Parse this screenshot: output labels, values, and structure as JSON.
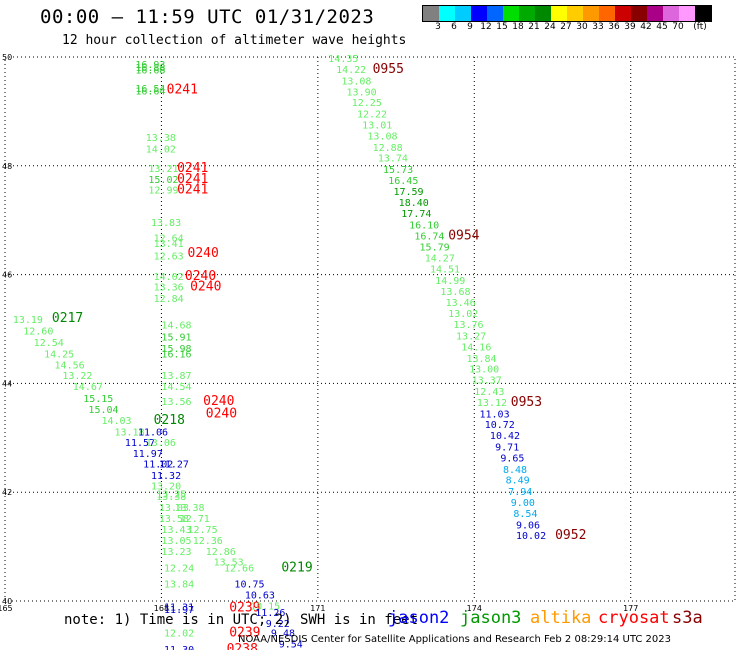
{
  "header": {
    "title": "00:00 — 11:59 UTC 01/31/2023",
    "subtitle": "12 hour collection of altimeter wave heights"
  },
  "legend": {
    "colors": [
      "#808080",
      "#00ffff",
      "#00ccff",
      "#0000ff",
      "#0066ff",
      "#00dd00",
      "#00aa00",
      "#008800",
      "#ffff00",
      "#ffcc00",
      "#ff9900",
      "#ff6600",
      "#cc0000",
      "#880000",
      "#aa0088",
      "#dd66dd",
      "#ff99ff",
      "#000000"
    ],
    "labels": [
      "3",
      "6",
      "9",
      "12",
      "15",
      "18",
      "21",
      "24",
      "27",
      "30",
      "33",
      "36",
      "39",
      "42",
      "45",
      "70",
      "(ft)"
    ]
  },
  "axes": {
    "lat_labels": [
      "50",
      "48",
      "46",
      "44",
      "42",
      "40"
    ],
    "lon_labels": [
      "165",
      "168",
      "171",
      "174",
      "177"
    ]
  },
  "observations": [
    {
      "t": "16.93",
      "lon": 167.5,
      "lat": 49.87,
      "c": "#33cc33"
    },
    {
      "t": "16.88",
      "lon": 167.5,
      "lat": 49.82,
      "c": "#33cc33"
    },
    {
      "t": "16.68",
      "lon": 167.5,
      "lat": 49.77,
      "c": "#33cc33"
    },
    {
      "t": "16.54",
      "lon": 167.5,
      "lat": 49.43,
      "c": "#33cc33"
    },
    {
      "t": "16.64",
      "lon": 167.5,
      "lat": 49.38,
      "c": "#33cc33"
    },
    {
      "t": "0241",
      "lon": 168.1,
      "lat": 49.4,
      "c": "#ff0000",
      "big": true
    },
    {
      "t": "13.38",
      "lon": 167.7,
      "lat": 48.53,
      "c": "#66ee66"
    },
    {
      "t": "14.02",
      "lon": 167.7,
      "lat": 48.32,
      "c": "#66ee66"
    },
    {
      "t": "13.21",
      "lon": 167.75,
      "lat": 47.96,
      "c": "#66ee66"
    },
    {
      "t": "0241",
      "lon": 168.3,
      "lat": 47.96,
      "c": "#ff0000",
      "big": true
    },
    {
      "t": "15.02",
      "lon": 167.75,
      "lat": 47.76,
      "c": "#33cc33"
    },
    {
      "t": "0241",
      "lon": 168.3,
      "lat": 47.76,
      "c": "#ff0000",
      "big": true
    },
    {
      "t": "12.99",
      "lon": 167.75,
      "lat": 47.56,
      "c": "#66ee66"
    },
    {
      "t": "0241",
      "lon": 168.3,
      "lat": 47.56,
      "c": "#ff0000",
      "big": true
    },
    {
      "t": "13.83",
      "lon": 167.8,
      "lat": 46.97,
      "c": "#66ee66"
    },
    {
      "t": "12.64",
      "lon": 167.85,
      "lat": 46.68,
      "c": "#66ee66"
    },
    {
      "t": "13.41",
      "lon": 167.85,
      "lat": 46.58,
      "c": "#66ee66"
    },
    {
      "t": "12.63",
      "lon": 167.85,
      "lat": 46.35,
      "c": "#66ee66"
    },
    {
      "t": "0240",
      "lon": 168.5,
      "lat": 46.4,
      "c": "#ff0000",
      "big": true
    },
    {
      "t": "14.02",
      "lon": 167.85,
      "lat": 45.97,
      "c": "#66ee66"
    },
    {
      "t": "0240",
      "lon": 168.45,
      "lat": 45.97,
      "c": "#ff0000",
      "big": true
    },
    {
      "t": "13.36",
      "lon": 167.85,
      "lat": 45.78,
      "c": "#66ee66"
    },
    {
      "t": "0240",
      "lon": 168.55,
      "lat": 45.78,
      "c": "#ff0000",
      "big": true
    },
    {
      "t": "12.84",
      "lon": 167.85,
      "lat": 45.57,
      "c": "#66ee66"
    },
    {
      "t": "13.19",
      "lon": 165.15,
      "lat": 45.18,
      "c": "#66ee66"
    },
    {
      "t": "0217",
      "lon": 165.9,
      "lat": 45.2,
      "c": "#008800",
      "big": true
    },
    {
      "t": "12.60",
      "lon": 165.35,
      "lat": 44.97,
      "c": "#66ee66"
    },
    {
      "t": "14.68",
      "lon": 168.0,
      "lat": 45.08,
      "c": "#66ee66"
    },
    {
      "t": "12.54",
      "lon": 165.55,
      "lat": 44.76,
      "c": "#66ee66"
    },
    {
      "t": "15.91",
      "lon": 168.0,
      "lat": 44.86,
      "c": "#33cc33"
    },
    {
      "t": "14.25",
      "lon": 165.75,
      "lat": 44.55,
      "c": "#66ee66"
    },
    {
      "t": "15.98",
      "lon": 168.0,
      "lat": 44.65,
      "c": "#33cc33"
    },
    {
      "t": "16.16",
      "lon": 168.0,
      "lat": 44.55,
      "c": "#33cc33"
    },
    {
      "t": "14.56",
      "lon": 165.95,
      "lat": 44.35,
      "c": "#66ee66"
    },
    {
      "t": "13.22",
      "lon": 166.1,
      "lat": 44.15,
      "c": "#66ee66"
    },
    {
      "t": "13.87",
      "lon": 168.0,
      "lat": 44.15,
      "c": "#66ee66"
    },
    {
      "t": "14.67",
      "lon": 166.3,
      "lat": 43.95,
      "c": "#66ee66"
    },
    {
      "t": "14.54",
      "lon": 168.0,
      "lat": 43.95,
      "c": "#66ee66"
    },
    {
      "t": "15.15",
      "lon": 166.5,
      "lat": 43.73,
      "c": "#33cc33"
    },
    {
      "t": "13.56",
      "lon": 168.0,
      "lat": 43.68,
      "c": "#66ee66"
    },
    {
      "t": "0240",
      "lon": 168.8,
      "lat": 43.68,
      "c": "#ff0000",
      "big": true
    },
    {
      "t": "15.04",
      "lon": 166.6,
      "lat": 43.53,
      "c": "#33cc33"
    },
    {
      "t": "0240",
      "lon": 168.85,
      "lat": 43.45,
      "c": "#ff0000",
      "big": true
    },
    {
      "t": "14.03",
      "lon": 166.85,
      "lat": 43.33,
      "c": "#66ee66"
    },
    {
      "t": "0218",
      "lon": 167.85,
      "lat": 43.33,
      "c": "#008800",
      "big": true
    },
    {
      "t": "13.18",
      "lon": 167.1,
      "lat": 43.12,
      "c": "#66ee66"
    },
    {
      "t": "11.06",
      "lon": 167.55,
      "lat": 43.12,
      "c": "#0000cc"
    },
    {
      "t": "11.57",
      "lon": 167.3,
      "lat": 42.92,
      "c": "#0000cc"
    },
    {
      "t": "13.06",
      "lon": 167.7,
      "lat": 42.92,
      "c": "#66ee66"
    },
    {
      "t": "11.97",
      "lon": 167.45,
      "lat": 42.72,
      "c": "#0000cc"
    },
    {
      "t": "11.02",
      "lon": 167.65,
      "lat": 42.53,
      "c": "#0000cc"
    },
    {
      "t": "11.27",
      "lon": 167.95,
      "lat": 42.53,
      "c": "#0000cc"
    },
    {
      "t": "11.32",
      "lon": 167.8,
      "lat": 42.32,
      "c": "#0000cc"
    },
    {
      "t": "13.20",
      "lon": 167.8,
      "lat": 42.12,
      "c": "#66ee66"
    },
    {
      "t": "13.25",
      "lon": 167.9,
      "lat": 41.98,
      "c": "#66ee66"
    },
    {
      "t": "13.38",
      "lon": 167.9,
      "lat": 41.93,
      "c": "#66ee66"
    },
    {
      "t": "13.03",
      "lon": 167.95,
      "lat": 41.73,
      "c": "#66ee66"
    },
    {
      "t": "13.38",
      "lon": 168.25,
      "lat": 41.73,
      "c": "#66ee66"
    },
    {
      "t": "13.58",
      "lon": 167.95,
      "lat": 41.53,
      "c": "#66ee66"
    },
    {
      "t": "12.71",
      "lon": 168.35,
      "lat": 41.53,
      "c": "#66ee66"
    },
    {
      "t": "13.43",
      "lon": 168.0,
      "lat": 41.32,
      "c": "#66ee66"
    },
    {
      "t": "12.75",
      "lon": 168.5,
      "lat": 41.32,
      "c": "#66ee66"
    },
    {
      "t": "13.05",
      "lon": 168.0,
      "lat": 41.12,
      "c": "#66ee66"
    },
    {
      "t": "12.36",
      "lon": 168.6,
      "lat": 41.12,
      "c": "#66ee66"
    },
    {
      "t": "13.23",
      "lon": 168.0,
      "lat": 40.92,
      "c": "#66ee66"
    },
    {
      "t": "12.86",
      "lon": 168.85,
      "lat": 40.92,
      "c": "#66ee66"
    },
    {
      "t": "13.53",
      "lon": 169.0,
      "lat": 40.73,
      "c": "#66ee66"
    },
    {
      "t": "12.24",
      "lon": 168.05,
      "lat": 40.62,
      "c": "#66ee66"
    },
    {
      "t": "12.66",
      "lon": 169.2,
      "lat": 40.62,
      "c": "#66ee66"
    },
    {
      "t": "0219",
      "lon": 170.3,
      "lat": 40.62,
      "c": "#008800",
      "big": true
    },
    {
      "t": "13.84",
      "lon": 168.05,
      "lat": 40.32,
      "c": "#66ee66"
    },
    {
      "t": "10.75",
      "lon": 169.4,
      "lat": 40.32,
      "c": "#0000cc"
    },
    {
      "t": "10.63",
      "lon": 169.6,
      "lat": 40.12,
      "c": "#0000cc"
    },
    {
      "t": "11.31",
      "lon": 168.05,
      "lat": 39.9,
      "c": "#0000cc"
    },
    {
      "t": "11.97",
      "lon": 168.05,
      "lat": 39.85,
      "c": "#0000cc"
    },
    {
      "t": "0239",
      "lon": 169.3,
      "lat": 39.88,
      "c": "#ff0000",
      "big": true
    },
    {
      "t": "10.15",
      "lon": 169.7,
      "lat": 39.92,
      "c": "#66ee66"
    },
    {
      "t": "11.26",
      "lon": 169.8,
      "lat": 39.8,
      "c": "#0000cc"
    },
    {
      "t": "9.22",
      "lon": 170.0,
      "lat": 39.6,
      "c": "#0000cc"
    },
    {
      "t": "12.02",
      "lon": 168.05,
      "lat": 39.42,
      "c": "#66ee66"
    },
    {
      "t": "0239",
      "lon": 169.3,
      "lat": 39.42,
      "c": "#ff0000",
      "big": true
    },
    {
      "t": "9.48",
      "lon": 170.1,
      "lat": 39.42,
      "c": "#0000cc"
    },
    {
      "t": "9.54",
      "lon": 170.25,
      "lat": 39.22,
      "c": "#0000cc"
    },
    {
      "t": "11.30",
      "lon": 168.05,
      "lat": 39.12,
      "c": "#0000cc"
    },
    {
      "t": "0238",
      "lon": 169.25,
      "lat": 39.12,
      "c": "#ff0000",
      "big": true
    },
    {
      "t": "14.35",
      "lon": 171.2,
      "lat": 49.98,
      "c": "#66ee66"
    },
    {
      "t": "14.22",
      "lon": 171.35,
      "lat": 49.78,
      "c": "#66ee66"
    },
    {
      "t": "0955",
      "lon": 172.05,
      "lat": 49.78,
      "c": "#880000",
      "big": true
    },
    {
      "t": "13.08",
      "lon": 171.45,
      "lat": 49.57,
      "c": "#66ee66"
    },
    {
      "t": "13.90",
      "lon": 171.55,
      "lat": 49.37,
      "c": "#66ee66"
    },
    {
      "t": "12.25",
      "lon": 171.65,
      "lat": 49.17,
      "c": "#66ee66"
    },
    {
      "t": "12.22",
      "lon": 171.75,
      "lat": 48.96,
      "c": "#66ee66"
    },
    {
      "t": "13.01",
      "lon": 171.85,
      "lat": 48.76,
      "c": "#66ee66"
    },
    {
      "t": "13.08",
      "lon": 171.95,
      "lat": 48.56,
      "c": "#66ee66"
    },
    {
      "t": "12.88",
      "lon": 172.05,
      "lat": 48.35,
      "c": "#66ee66"
    },
    {
      "t": "13.74",
      "lon": 172.15,
      "lat": 48.15,
      "c": "#66ee66"
    },
    {
      "t": "15.73",
      "lon": 172.25,
      "lat": 47.94,
      "c": "#33cc33"
    },
    {
      "t": "16.45",
      "lon": 172.35,
      "lat": 47.74,
      "c": "#33cc33"
    },
    {
      "t": "17.59",
      "lon": 172.45,
      "lat": 47.54,
      "c": "#009900"
    },
    {
      "t": "18.40",
      "lon": 172.55,
      "lat": 47.33,
      "c": "#009900"
    },
    {
      "t": "17.74",
      "lon": 172.6,
      "lat": 47.13,
      "c": "#009900"
    },
    {
      "t": "16.10",
      "lon": 172.75,
      "lat": 46.92,
      "c": "#33cc33"
    },
    {
      "t": "16.74",
      "lon": 172.85,
      "lat": 46.72,
      "c": "#33cc33"
    },
    {
      "t": "0954",
      "lon": 173.5,
      "lat": 46.72,
      "c": "#880000",
      "big": true
    },
    {
      "t": "15.79",
      "lon": 172.95,
      "lat": 46.52,
      "c": "#33cc33"
    },
    {
      "t": "14.27",
      "lon": 173.05,
      "lat": 46.31,
      "c": "#66ee66"
    },
    {
      "t": "14.51",
      "lon": 173.15,
      "lat": 46.11,
      "c": "#66ee66"
    },
    {
      "t": "14.99",
      "lon": 173.25,
      "lat": 45.9,
      "c": "#66ee66"
    },
    {
      "t": "13.68",
      "lon": 173.35,
      "lat": 45.7,
      "c": "#66ee66"
    },
    {
      "t": "13.46",
      "lon": 173.45,
      "lat": 45.5,
      "c": "#66ee66"
    },
    {
      "t": "13.02",
      "lon": 173.5,
      "lat": 45.29,
      "c": "#66ee66"
    },
    {
      "t": "13.76",
      "lon": 173.6,
      "lat": 45.09,
      "c": "#66ee66"
    },
    {
      "t": "13.27",
      "lon": 173.65,
      "lat": 44.88,
      "c": "#66ee66"
    },
    {
      "t": "14.16",
      "lon": 173.75,
      "lat": 44.68,
      "c": "#66ee66"
    },
    {
      "t": "13.84",
      "lon": 173.85,
      "lat": 44.47,
      "c": "#66ee66"
    },
    {
      "t": "13.00",
      "lon": 173.9,
      "lat": 44.27,
      "c": "#66ee66"
    },
    {
      "t": "13.37",
      "lon": 173.95,
      "lat": 44.07,
      "c": "#66ee66"
    },
    {
      "t": "12.43",
      "lon": 174.0,
      "lat": 43.86,
      "c": "#66ee66"
    },
    {
      "t": "13.12",
      "lon": 174.05,
      "lat": 43.66,
      "c": "#66ee66"
    },
    {
      "t": "0953",
      "lon": 174.7,
      "lat": 43.66,
      "c": "#880000",
      "big": true
    },
    {
      "t": "11.03",
      "lon": 174.1,
      "lat": 43.45,
      "c": "#0000cc"
    },
    {
      "t": "10.72",
      "lon": 174.2,
      "lat": 43.25,
      "c": "#0000cc"
    },
    {
      "t": "10.42",
      "lon": 174.3,
      "lat": 43.05,
      "c": "#0000cc"
    },
    {
      "t": "9.71",
      "lon": 174.4,
      "lat": 42.84,
      "c": "#0000cc"
    },
    {
      "t": "9.65",
      "lon": 174.5,
      "lat": 42.64,
      "c": "#0000cc"
    },
    {
      "t": "8.48",
      "lon": 174.55,
      "lat": 42.43,
      "c": "#00aaee"
    },
    {
      "t": "8.49",
      "lon": 174.6,
      "lat": 42.23,
      "c": "#00aaee"
    },
    {
      "t": "7.94",
      "lon": 174.65,
      "lat": 42.02,
      "c": "#00aaee"
    },
    {
      "t": "9.00",
      "lon": 174.7,
      "lat": 41.82,
      "c": "#00aaee"
    },
    {
      "t": "8.54",
      "lon": 174.75,
      "lat": 41.62,
      "c": "#00aaee"
    },
    {
      "t": "9.06",
      "lon": 174.8,
      "lat": 41.41,
      "c": "#0000cc"
    },
    {
      "t": "10.02",
      "lon": 174.8,
      "lat": 41.21,
      "c": "#0000cc"
    },
    {
      "t": "0952",
      "lon": 175.55,
      "lat": 41.21,
      "c": "#880000",
      "big": true
    }
  ],
  "footer": {
    "note": "note: 1) Time is in UTC; 2) SWH is in feet",
    "satellites": [
      {
        "name": "jason2",
        "color": "#0000ff"
      },
      {
        "name": "jason3",
        "color": "#009900"
      },
      {
        "name": "altika",
        "color": "#ff9900"
      },
      {
        "name": "cryosat",
        "color": "#ff0000"
      },
      {
        "name": "s3a",
        "color": "#880000"
      }
    ],
    "credit": "NOAA/NESDIS Center for Satellite Applications and Research   Feb  2 08:29:14 UTC 2023"
  }
}
